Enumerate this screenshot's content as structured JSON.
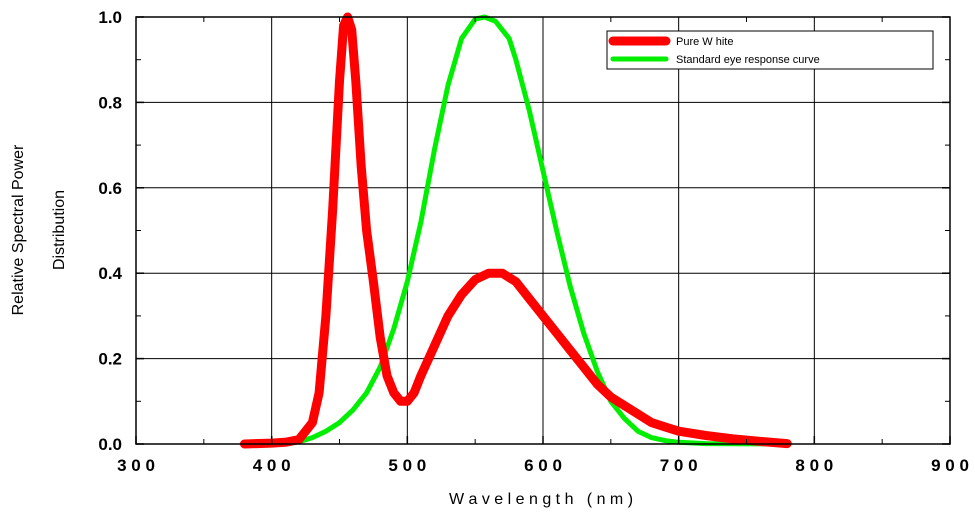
{
  "chart_data": {
    "type": "line",
    "xlabel": "W a v e l e n g t h   ( n m )",
    "ylabel_lines": [
      "Relative Spectral Power",
      "Distribution"
    ],
    "xlim": [
      300,
      900
    ],
    "ylim": [
      0,
      1.0
    ],
    "x_ticks": [
      300,
      400,
      500,
      600,
      700,
      800,
      900
    ],
    "x_tick_labels": [
      "3 0 0",
      "4 0 0",
      "5 0 0",
      "6 0 0",
      "7 0 0",
      "8 0 0",
      "9 0 0"
    ],
    "y_ticks": [
      0,
      0.2,
      0.4,
      0.6,
      0.8,
      1.0
    ],
    "y_tick_labels": [
      "0.0",
      "0.2",
      "0.4",
      "0.6",
      "0.8",
      "1.0"
    ],
    "grid": true,
    "legend_position": "top-right",
    "series": [
      {
        "name": "Pure W hite",
        "color": "#ff0000",
        "points": [
          [
            380,
            0
          ],
          [
            400,
            0.002
          ],
          [
            410,
            0.004
          ],
          [
            420,
            0.01
          ],
          [
            430,
            0.05
          ],
          [
            435,
            0.12
          ],
          [
            440,
            0.3
          ],
          [
            445,
            0.55
          ],
          [
            450,
            0.85
          ],
          [
            453,
            0.98
          ],
          [
            456,
            1.0
          ],
          [
            459,
            0.97
          ],
          [
            462,
            0.85
          ],
          [
            466,
            0.65
          ],
          [
            470,
            0.5
          ],
          [
            475,
            0.38
          ],
          [
            480,
            0.25
          ],
          [
            485,
            0.16
          ],
          [
            490,
            0.12
          ],
          [
            495,
            0.1
          ],
          [
            500,
            0.1
          ],
          [
            505,
            0.12
          ],
          [
            510,
            0.16
          ],
          [
            520,
            0.23
          ],
          [
            530,
            0.3
          ],
          [
            540,
            0.35
          ],
          [
            550,
            0.385
          ],
          [
            560,
            0.4
          ],
          [
            570,
            0.4
          ],
          [
            580,
            0.38
          ],
          [
            590,
            0.34
          ],
          [
            600,
            0.3
          ],
          [
            610,
            0.26
          ],
          [
            620,
            0.22
          ],
          [
            630,
            0.18
          ],
          [
            640,
            0.14
          ],
          [
            650,
            0.11
          ],
          [
            660,
            0.09
          ],
          [
            670,
            0.07
          ],
          [
            680,
            0.05
          ],
          [
            690,
            0.04
          ],
          [
            700,
            0.03
          ],
          [
            720,
            0.02
          ],
          [
            740,
            0.012
          ],
          [
            760,
            0.006
          ],
          [
            780,
            0.001
          ]
        ]
      },
      {
        "name": "Standard eye response curve",
        "color": "#00ee00",
        "points": [
          [
            380,
            0
          ],
          [
            400,
            0.001
          ],
          [
            410,
            0.002
          ],
          [
            420,
            0.005
          ],
          [
            430,
            0.015
          ],
          [
            440,
            0.03
          ],
          [
            450,
            0.05
          ],
          [
            460,
            0.08
          ],
          [
            470,
            0.12
          ],
          [
            480,
            0.18
          ],
          [
            490,
            0.27
          ],
          [
            500,
            0.38
          ],
          [
            510,
            0.52
          ],
          [
            520,
            0.69
          ],
          [
            530,
            0.84
          ],
          [
            540,
            0.95
          ],
          [
            550,
            0.995
          ],
          [
            557,
            1.0
          ],
          [
            565,
            0.99
          ],
          [
            575,
            0.95
          ],
          [
            580,
            0.9
          ],
          [
            590,
            0.78
          ],
          [
            600,
            0.64
          ],
          [
            610,
            0.5
          ],
          [
            620,
            0.37
          ],
          [
            630,
            0.26
          ],
          [
            640,
            0.17
          ],
          [
            650,
            0.1
          ],
          [
            660,
            0.06
          ],
          [
            670,
            0.03
          ],
          [
            680,
            0.015
          ],
          [
            690,
            0.008
          ],
          [
            700,
            0.004
          ],
          [
            720,
            0.001
          ],
          [
            780,
            0
          ]
        ]
      }
    ]
  }
}
